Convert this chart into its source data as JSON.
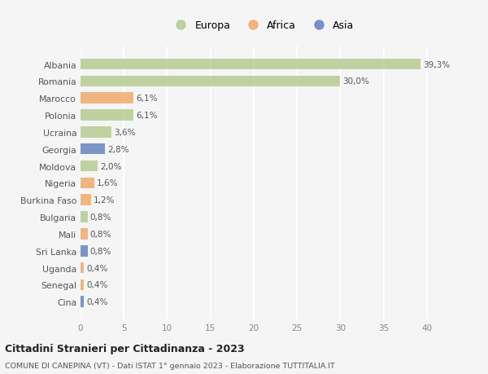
{
  "countries": [
    "Albania",
    "Romania",
    "Marocco",
    "Polonia",
    "Ucraina",
    "Georgia",
    "Moldova",
    "Nigeria",
    "Burkina Faso",
    "Bulgaria",
    "Mali",
    "Sri Lanka",
    "Uganda",
    "Senegal",
    "Cina"
  ],
  "values": [
    39.3,
    30.0,
    6.1,
    6.1,
    3.6,
    2.8,
    2.0,
    1.6,
    1.2,
    0.8,
    0.8,
    0.8,
    0.4,
    0.4,
    0.4
  ],
  "labels": [
    "39,3%",
    "30,0%",
    "6,1%",
    "6,1%",
    "3,6%",
    "2,8%",
    "2,0%",
    "1,6%",
    "1,2%",
    "0,8%",
    "0,8%",
    "0,8%",
    "0,4%",
    "0,4%",
    "0,4%"
  ],
  "continents": [
    "Europa",
    "Europa",
    "Africa",
    "Europa",
    "Europa",
    "Asia",
    "Europa",
    "Africa",
    "Africa",
    "Europa",
    "Africa",
    "Asia",
    "Africa",
    "Africa",
    "Asia"
  ],
  "continent_colors": {
    "Europa": "#b5c98e",
    "Africa": "#f0a868",
    "Asia": "#6080c0"
  },
  "background_color": "#f5f5f5",
  "title_line1": "Cittadini Stranieri per Cittadinanza - 2023",
  "title_line2": "COMUNE DI CANEPINA (VT) - Dati ISTAT 1° gennaio 2023 - Elaborazione TUTTITALIA.IT",
  "xlim": [
    0,
    42
  ],
  "xticks": [
    0,
    5,
    10,
    15,
    20,
    25,
    30,
    35,
    40
  ],
  "grid_color": "#ffffff",
  "bar_height": 0.65
}
